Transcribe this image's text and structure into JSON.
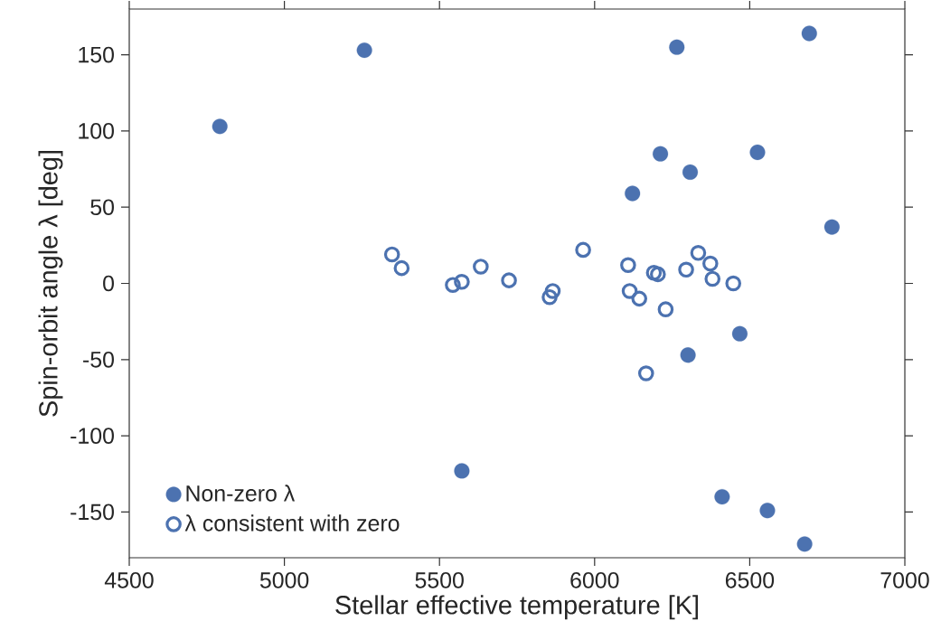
{
  "chart_data": {
    "type": "scatter",
    "xlabel": "Stellar effective temperature [K]",
    "ylabel": "Spin-orbit angle λ [deg]",
    "xlim": [
      4500,
      7000
    ],
    "ylim": [
      -180,
      180
    ],
    "xticks": [
      4500,
      5000,
      5500,
      6000,
      6500,
      7000
    ],
    "yticks": [
      -150,
      -100,
      -50,
      0,
      50,
      100,
      150
    ],
    "grid": false,
    "legend": "bottom left",
    "marker": "circle",
    "series": [
      {
        "name": "Non-zero λ",
        "color": "#4c72b0",
        "x": [
          4792,
          5258,
          6265,
          6692,
          6212,
          6525,
          6308,
          6122,
          6765,
          6468,
          6301,
          6411,
          6557,
          6677,
          5572
        ],
        "values": [
          103,
          153,
          155,
          164,
          85,
          86,
          73,
          59,
          37,
          -33,
          -47,
          -140,
          -149,
          -171,
          -123
        ]
      },
      {
        "name": "λ consistent with zero",
        "color": "#4c72b0",
        "marker": "circle-open",
        "x": [
          5347,
          5378,
          5543,
          5572,
          5633,
          5724,
          5865,
          5855,
          5963,
          6108,
          6191,
          6204,
          6295,
          6334,
          6373,
          6380,
          6447,
          6113,
          6144,
          6229,
          6166
        ],
        "values": [
          19,
          10,
          -1,
          1,
          11,
          2,
          -5,
          -9,
          22,
          12,
          7,
          6,
          9,
          20,
          13,
          3,
          0,
          -5,
          -10,
          -17,
          -59
        ]
      }
    ]
  }
}
